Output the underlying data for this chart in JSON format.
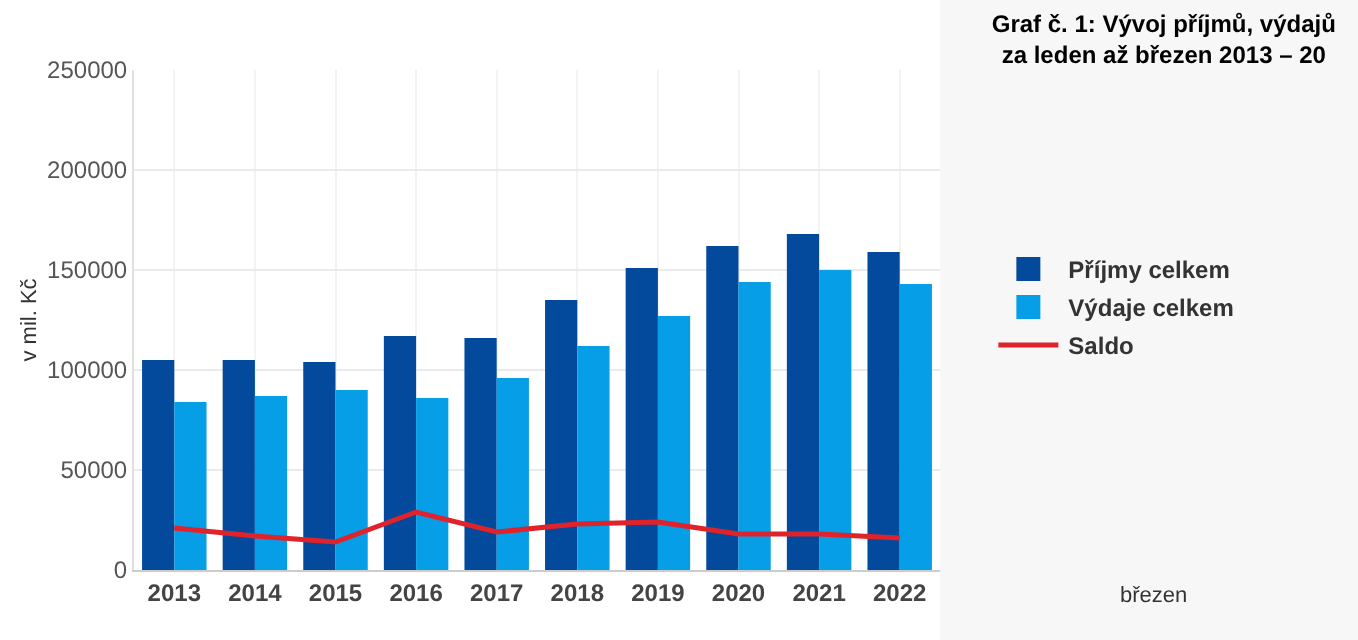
{
  "chart_data": {
    "type": "bar",
    "title": "Graf č. 1: Vývoj příjmů, výdajů za leden až březen 2013 – 20",
    "ylabel": "v mil. Kč",
    "categories": [
      "2013",
      "2014",
      "2015",
      "2016",
      "2017",
      "2018",
      "2019",
      "2020",
      "2021",
      "2022"
    ],
    "series": [
      {
        "name": "Příjmy celkem",
        "color": "#034a9c",
        "values": [
          105000,
          105000,
          104000,
          117000,
          116000,
          135000,
          151000,
          162000,
          168000,
          159000
        ]
      },
      {
        "name": "Výdaje celkem",
        "color": "#069ee6",
        "values": [
          84000,
          87000,
          90000,
          86000,
          96000,
          112000,
          127000,
          144000,
          150000,
          143000
        ]
      },
      {
        "name": "Saldo",
        "type": "line",
        "color": "#e0232b",
        "values": [
          21000,
          17000,
          14000,
          29000,
          19000,
          23000,
          24000,
          18000,
          18000,
          16000
        ]
      }
    ],
    "ylim": [
      0,
      250000
    ],
    "yticks": [
      0,
      50000,
      100000,
      150000,
      200000,
      250000
    ],
    "grid": true,
    "legend": "right",
    "line_style": "solid",
    "annotations": [
      "březen"
    ]
  }
}
